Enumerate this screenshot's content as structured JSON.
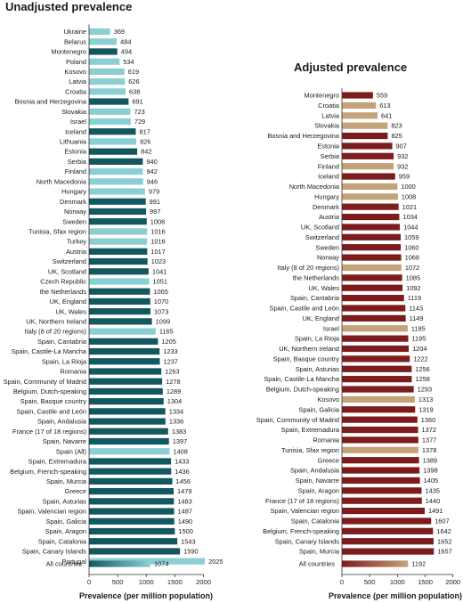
{
  "colors": {
    "light_teal": "#8ccfd3",
    "dark_teal": "#14585f",
    "dark_red": "#7d1c1c",
    "tan": "#c4a27a"
  },
  "chart_data": [
    {
      "type": "bar",
      "orientation": "horizontal",
      "title": "Unadjusted prevalence",
      "xlabel": "Prevalence (per million population)",
      "xlim": [
        0,
        2000
      ],
      "xticks": [
        0,
        500,
        1000,
        1500,
        2000
      ],
      "grid": false,
      "categories": [
        "Ukraine",
        "Belarus",
        "Montenegro",
        "Poland",
        "Kosovo",
        "Latvia",
        "Croatia",
        "Bosnia and Herzegovina",
        "Slovakia",
        "Israel",
        "Iceland",
        "Lithuania",
        "Estonia",
        "Serbia",
        "Finland",
        "North Macedonia",
        "Hungary",
        "Denmark",
        "Norway",
        "Sweden",
        "Tunisia, Sfax region",
        "Turkey",
        "Austria",
        "Switzerland",
        "UK, Scotland",
        "Czech Republic",
        "the Netherlands",
        "UK, England",
        "UK, Wales",
        "UK, Northern Ireland",
        "Italy (8 of 20 regions)",
        "Spain, Cantabria",
        "Spain, Castile-La Mancha",
        "Spain, La Rioja",
        "Romania",
        "Spain, Community of Madrid",
        "Belgium, Dutch-speaking",
        "Spain, Basque country",
        "Spain, Castile and León",
        "Spain, Andalusia",
        "France (17 of 18 regions)",
        "Spain, Navarre",
        "Spain (All)",
        "Spain, Extremadura",
        "Belgium, French-speaking",
        "Spain, Murcia",
        "Greece",
        "Spain, Asturias",
        "Spain, Valencian region",
        "Spain, Galicia",
        "Spain, Aragon",
        "Spain, Catalonia",
        "Spain, Canary Islands",
        "Portugal"
      ],
      "values": [
        369,
        484,
        494,
        534,
        619,
        626,
        638,
        691,
        723,
        729,
        817,
        826,
        842,
        940,
        942,
        946,
        979,
        991,
        997,
        1008,
        1016,
        1016,
        1017,
        1023,
        1041,
        1051,
        1065,
        1070,
        1073,
        1099,
        1165,
        1205,
        1233,
        1237,
        1263,
        1278,
        1289,
        1304,
        1334,
        1336,
        1383,
        1397,
        1408,
        1433,
        1436,
        1456,
        1479,
        1483,
        1487,
        1490,
        1500,
        1543,
        1590,
        2025
      ],
      "colors": [
        "light",
        "light",
        "dark",
        "light",
        "light",
        "light",
        "light",
        "dark",
        "light",
        "light",
        "dark",
        "light",
        "dark",
        "dark",
        "light",
        "light",
        "light",
        "dark",
        "dark",
        "dark",
        "light",
        "light",
        "dark",
        "dark",
        "dark",
        "light",
        "dark",
        "dark",
        "dark",
        "dark",
        "light",
        "dark",
        "dark",
        "dark",
        "dark",
        "dark",
        "dark",
        "dark",
        "dark",
        "dark",
        "dark",
        "dark",
        "light",
        "dark",
        "dark",
        "dark",
        "dark",
        "dark",
        "dark",
        "dark",
        "dark",
        "dark",
        "dark",
        "light"
      ],
      "summary": {
        "label": "All countries",
        "value": 1074
      }
    },
    {
      "type": "bar",
      "orientation": "horizontal",
      "title": "Adjusted prevalence",
      "xlabel": "Prevalence (per million population)",
      "xlim": [
        0,
        2000
      ],
      "xticks": [
        0,
        500,
        1000,
        1500,
        2000
      ],
      "grid": false,
      "categories": [
        "Montenegro",
        "Croatia",
        "Latvia",
        "Slovakia",
        "Bosnia and Herzegovina",
        "Estonia",
        "Serbia",
        "Finland",
        "Iceland",
        "North Macedonia",
        "Hungary",
        "Denmark",
        "Austria",
        "UK, Scotland",
        "Switzerland",
        "Sweden",
        "Norway",
        "Italy (8 of 20 regions)",
        "the Netherlands",
        "UK, Wales",
        "Spain, Cantabria",
        "Spain, Castile and León",
        "UK, England",
        "Israel",
        "Spain, La Rioja",
        "UK, Northern Ireland",
        "Spain, Basque country",
        "Spain, Asturias",
        "Spain, Castile-La Mancha",
        "Belgium, Dutch-speaking",
        "Kosovo",
        "Spain, Galicia",
        "Spain, Community of Madrid",
        "Spain, Extremadura",
        "Romania",
        "Tunisia, Sfax region",
        "Greece",
        "Spain, Andalusia",
        "Spain, Navarre",
        "Spain, Aragon",
        "France (17 of 18 regions)",
        "Spain, Valencian region",
        "Spain, Catalonia",
        "Belgium, French-speaking",
        "Spain, Canary Islands",
        "Spain, Murcia"
      ],
      "values": [
        559,
        613,
        641,
        823,
        825,
        907,
        932,
        932,
        959,
        1000,
        1008,
        1021,
        1034,
        1044,
        1059,
        1060,
        1068,
        1072,
        1085,
        1092,
        1119,
        1143,
        1149,
        1185,
        1195,
        1204,
        1222,
        1256,
        1258,
        1293,
        1313,
        1319,
        1360,
        1372,
        1377,
        1378,
        1389,
        1398,
        1405,
        1435,
        1440,
        1491,
        1607,
        1642,
        1652,
        1657
      ],
      "colors": [
        "dark",
        "tan",
        "tan",
        "tan",
        "dark",
        "dark",
        "dark",
        "tan",
        "dark",
        "tan",
        "tan",
        "dark",
        "dark",
        "dark",
        "dark",
        "dark",
        "dark",
        "tan",
        "dark",
        "dark",
        "dark",
        "dark",
        "dark",
        "tan",
        "dark",
        "dark",
        "dark",
        "dark",
        "dark",
        "dark",
        "tan",
        "dark",
        "dark",
        "dark",
        "dark",
        "tan",
        "dark",
        "dark",
        "dark",
        "dark",
        "dark",
        "dark",
        "dark",
        "dark",
        "dark",
        "dark"
      ],
      "summary": {
        "label": "All countries",
        "value": 1192
      }
    }
  ]
}
